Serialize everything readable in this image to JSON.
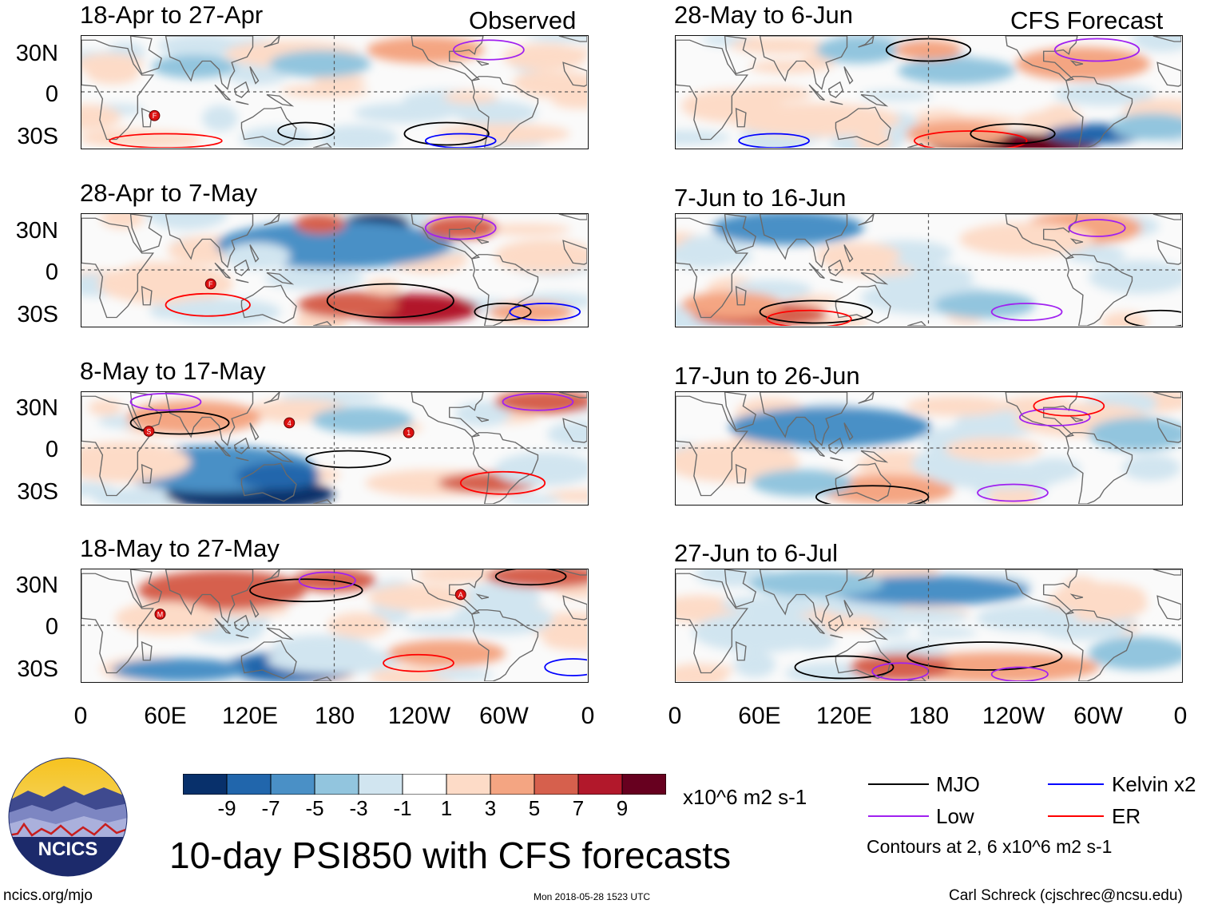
{
  "header": {
    "observed_label": "Observed",
    "forecast_label": "CFS Forecast"
  },
  "chart_data": {
    "type": "heatmap",
    "title": "10-day PSI850 with CFS forecasts",
    "variable": "PSI850",
    "units": "x10^6 m2 s-1",
    "x_ticks": [
      "0",
      "60E",
      "120E",
      "180",
      "120W",
      "60W",
      "0"
    ],
    "y_ticks": [
      "30N",
      "0",
      "30S"
    ],
    "colorbar": {
      "labels": [
        "-9",
        "-7",
        "-5",
        "-3",
        "-1",
        "1",
        "3",
        "5",
        "7",
        "9"
      ],
      "colors": [
        "#08306b",
        "#2166ac",
        "#4a90c6",
        "#92c5de",
        "#d1e5f0",
        "#ffffff",
        "#fddbc7",
        "#f4a582",
        "#d6604d",
        "#b2182b",
        "#67001f"
      ]
    },
    "panels": [
      {
        "id": "obs1",
        "period": "18-Apr to 27-Apr",
        "kind": "observed"
      },
      {
        "id": "obs2",
        "period": "28-Apr to 7-May",
        "kind": "observed"
      },
      {
        "id": "obs3",
        "period": "8-May to 17-May",
        "kind": "observed"
      },
      {
        "id": "obs4",
        "period": "18-May to 27-May",
        "kind": "observed"
      },
      {
        "id": "fc1",
        "period": "28-May to 6-Jun",
        "kind": "forecast"
      },
      {
        "id": "fc2",
        "period": "7-Jun to 16-Jun",
        "kind": "forecast"
      },
      {
        "id": "fc3",
        "period": "17-Jun to 26-Jun",
        "kind": "forecast"
      },
      {
        "id": "fc4",
        "period": "27-Jun to 6-Jul",
        "kind": "forecast"
      }
    ],
    "legend": {
      "items": [
        {
          "label": "MJO",
          "color": "#000000"
        },
        {
          "label": "Kelvin x2",
          "color": "#0000ff"
        },
        {
          "label": "Low",
          "color": "#a020f0"
        },
        {
          "label": "ER",
          "color": "#ff0000"
        }
      ],
      "note": "Contours at 2, 6 x10^6 m2 s-1"
    },
    "storm_markers": [
      "F",
      "F",
      "S",
      "4",
      "1",
      "M",
      "A"
    ]
  },
  "footer": {
    "logo_text": "NCICS",
    "url": "ncics.org/mjo",
    "timestamp": "Mon 2018-05-28 1523 UTC",
    "credit": "Carl Schreck (cjschrec@ncsu.edu)"
  }
}
